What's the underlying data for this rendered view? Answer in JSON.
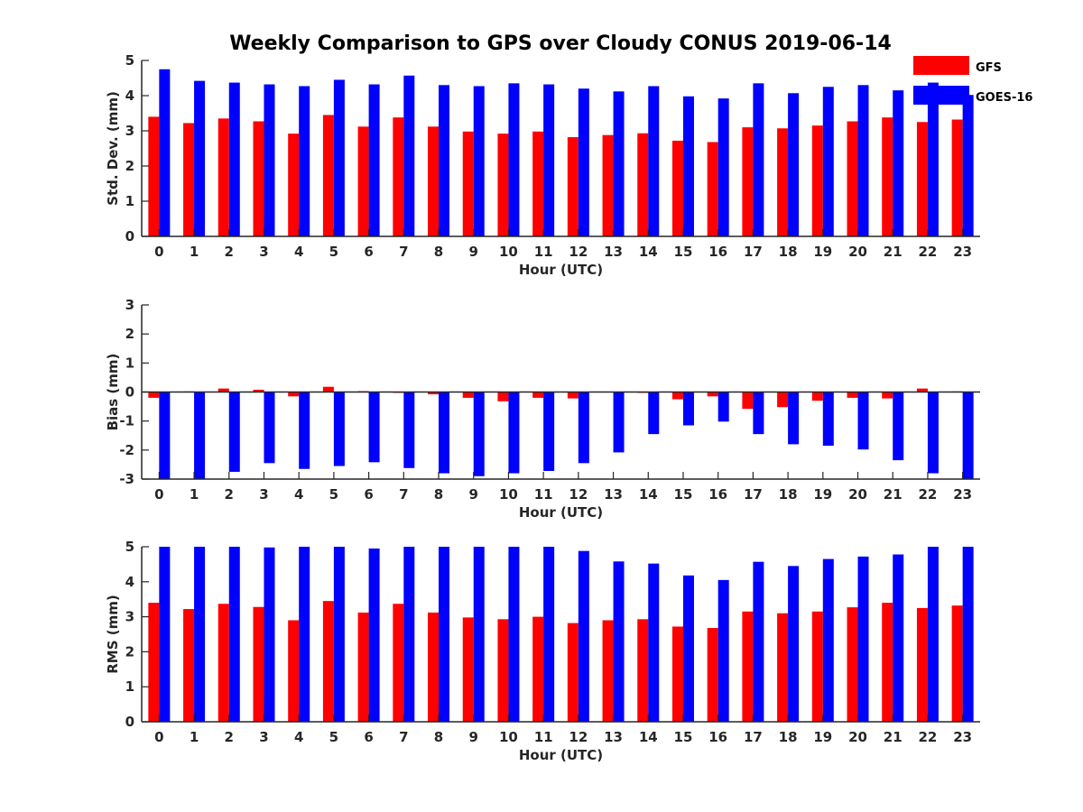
{
  "title": "Weekly Comparison to GPS over Cloudy CONUS 2019-06-14",
  "legend": {
    "placement": "top-right",
    "entries": [
      {
        "label": "GFS",
        "color": "#ff0000"
      },
      {
        "label": "GOES-16",
        "color": "#0000ff"
      }
    ]
  },
  "chart_data": [
    {
      "type": "bar",
      "xlabel": "Hour (UTC)",
      "ylabel": "Std. Dev. (mm)",
      "ylim": [
        0,
        5
      ],
      "yticks": [
        "0",
        "1",
        "2",
        "3",
        "4",
        "5"
      ],
      "categories": [
        "0",
        "1",
        "2",
        "3",
        "4",
        "5",
        "6",
        "7",
        "8",
        "9",
        "10",
        "11",
        "12",
        "13",
        "14",
        "15",
        "16",
        "17",
        "18",
        "19",
        "20",
        "21",
        "22",
        "23"
      ],
      "series": [
        {
          "name": "GFS",
          "color": "#ff0000",
          "values": [
            3.4,
            3.22,
            3.35,
            3.27,
            2.92,
            3.45,
            3.12,
            3.38,
            3.12,
            2.98,
            2.92,
            2.98,
            2.82,
            2.88,
            2.93,
            2.72,
            2.68,
            3.1,
            3.07,
            3.15,
            3.27,
            3.38,
            3.25,
            3.32
          ]
        },
        {
          "name": "GOES-16",
          "color": "#0000ff",
          "values": [
            4.75,
            4.42,
            4.37,
            4.32,
            4.27,
            4.45,
            4.32,
            4.57,
            4.3,
            4.27,
            4.35,
            4.32,
            4.2,
            4.12,
            4.27,
            3.98,
            3.92,
            4.35,
            4.07,
            4.25,
            4.3,
            4.15,
            4.37,
            4.02
          ]
        }
      ]
    },
    {
      "type": "bar",
      "xlabel": "Hour (UTC)",
      "ylabel": "Bias (mm)",
      "ylim": [
        -3,
        3
      ],
      "yticks": [
        "-3",
        "-2",
        "-1",
        "0",
        "1",
        "2",
        "3"
      ],
      "zero_line": true,
      "categories": [
        "0",
        "1",
        "2",
        "3",
        "4",
        "5",
        "6",
        "7",
        "8",
        "9",
        "10",
        "11",
        "12",
        "13",
        "14",
        "15",
        "16",
        "17",
        "18",
        "19",
        "20",
        "21",
        "22",
        "23"
      ],
      "series": [
        {
          "name": "GFS",
          "color": "#ff0000",
          "values": [
            -0.2,
            0.02,
            0.12,
            0.08,
            -0.15,
            0.18,
            0.03,
            -0.03,
            -0.08,
            -0.2,
            -0.32,
            -0.2,
            -0.22,
            0.0,
            -0.03,
            -0.25,
            -0.15,
            -0.58,
            -0.52,
            -0.3,
            -0.2,
            -0.22,
            0.12,
            0.02
          ]
        },
        {
          "name": "GOES-16",
          "color": "#0000ff",
          "values": [
            -3.0,
            -3.0,
            -2.75,
            -2.45,
            -2.65,
            -2.55,
            -2.42,
            -2.62,
            -2.8,
            -2.9,
            -2.8,
            -2.72,
            -2.45,
            -2.08,
            -1.45,
            -1.15,
            -1.02,
            -1.45,
            -1.8,
            -1.85,
            -1.98,
            -2.35,
            -2.8,
            -3.0
          ]
        }
      ]
    },
    {
      "type": "bar",
      "xlabel": "Hour (UTC)",
      "ylabel": "RMS (mm)",
      "ylim": [
        0,
        5
      ],
      "yticks": [
        "0",
        "1",
        "2",
        "3",
        "4",
        "5"
      ],
      "categories": [
        "0",
        "1",
        "2",
        "3",
        "4",
        "5",
        "6",
        "7",
        "8",
        "9",
        "10",
        "11",
        "12",
        "13",
        "14",
        "15",
        "16",
        "17",
        "18",
        "19",
        "20",
        "21",
        "22",
        "23"
      ],
      "series": [
        {
          "name": "GFS",
          "color": "#ff0000",
          "values": [
            3.4,
            3.22,
            3.37,
            3.28,
            2.9,
            3.45,
            3.12,
            3.37,
            3.12,
            2.98,
            2.93,
            3.0,
            2.82,
            2.9,
            2.93,
            2.72,
            2.68,
            3.15,
            3.1,
            3.15,
            3.27,
            3.4,
            3.25,
            3.32
          ]
        },
        {
          "name": "GOES-16",
          "color": "#0000ff",
          "values": [
            5.0,
            5.0,
            5.0,
            4.98,
            5.0,
            5.0,
            4.95,
            5.0,
            5.0,
            5.0,
            5.0,
            5.0,
            4.88,
            4.58,
            4.52,
            4.18,
            4.05,
            4.57,
            4.45,
            4.65,
            4.72,
            4.78,
            5.0,
            5.0
          ]
        }
      ]
    }
  ]
}
